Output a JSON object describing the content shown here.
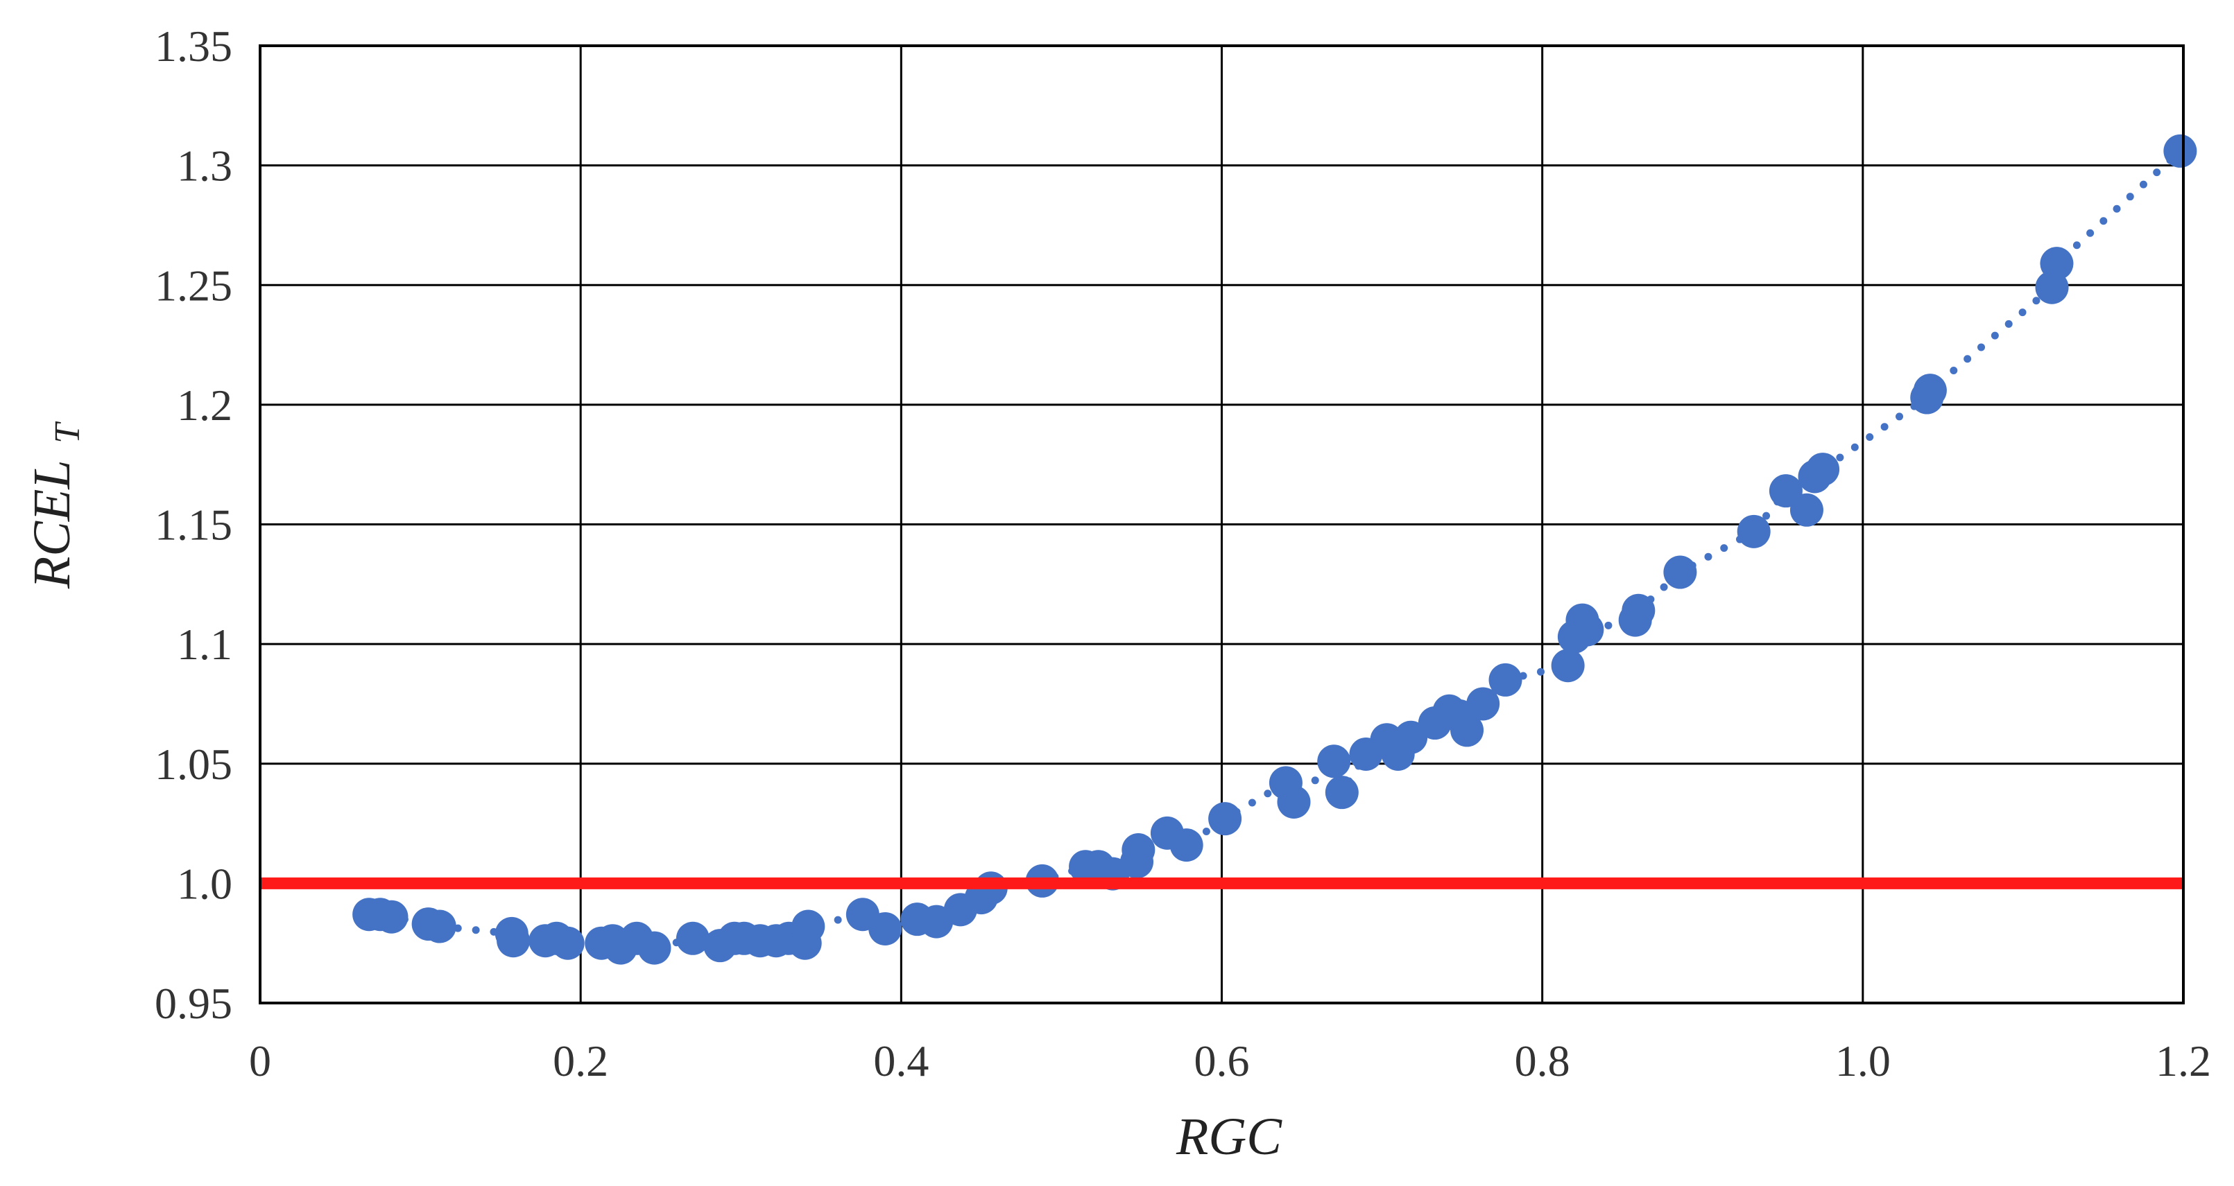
{
  "chart_data": {
    "type": "scatter",
    "xlabel": "RGC",
    "ylabel_main": "RCEL",
    "ylabel_sub": "T",
    "xlim": [
      0,
      1.2
    ],
    "ylim": [
      0.95,
      1.35
    ],
    "x_ticks": [
      0,
      0.2,
      0.4,
      0.6,
      0.8,
      1.0,
      1.2
    ],
    "x_tick_labels": [
      "0",
      "0.2",
      "0.4",
      "0.6",
      "0.8",
      "1.0",
      "1.2"
    ],
    "y_ticks": [
      0.95,
      1.0,
      1.05,
      1.1,
      1.15,
      1.2,
      1.25,
      1.3,
      1.35
    ],
    "y_tick_labels": [
      "0.95",
      "1.0",
      "1.05",
      "1.1",
      "1.15",
      "1.2",
      "1.25",
      "1.3",
      "1.35"
    ],
    "grid": true,
    "reference_line": {
      "y": 1.0,
      "color": "#ff1a1a"
    },
    "marker_color": "#4472c4",
    "trend_line": "dotted",
    "points": [
      {
        "x": 0.068,
        "y": 0.987
      },
      {
        "x": 0.075,
        "y": 0.987
      },
      {
        "x": 0.082,
        "y": 0.986
      },
      {
        "x": 0.105,
        "y": 0.983
      },
      {
        "x": 0.112,
        "y": 0.982
      },
      {
        "x": 0.157,
        "y": 0.979
      },
      {
        "x": 0.158,
        "y": 0.976
      },
      {
        "x": 0.178,
        "y": 0.976
      },
      {
        "x": 0.185,
        "y": 0.977
      },
      {
        "x": 0.192,
        "y": 0.975
      },
      {
        "x": 0.213,
        "y": 0.975
      },
      {
        "x": 0.22,
        "y": 0.976
      },
      {
        "x": 0.225,
        "y": 0.973
      },
      {
        "x": 0.235,
        "y": 0.977
      },
      {
        "x": 0.246,
        "y": 0.973
      },
      {
        "x": 0.27,
        "y": 0.977
      },
      {
        "x": 0.287,
        "y": 0.974
      },
      {
        "x": 0.296,
        "y": 0.977
      },
      {
        "x": 0.302,
        "y": 0.977
      },
      {
        "x": 0.312,
        "y": 0.976
      },
      {
        "x": 0.322,
        "y": 0.976
      },
      {
        "x": 0.33,
        "y": 0.977
      },
      {
        "x": 0.34,
        "y": 0.975
      },
      {
        "x": 0.342,
        "y": 0.982
      },
      {
        "x": 0.376,
        "y": 0.987
      },
      {
        "x": 0.39,
        "y": 0.981
      },
      {
        "x": 0.41,
        "y": 0.985
      },
      {
        "x": 0.422,
        "y": 0.984
      },
      {
        "x": 0.437,
        "y": 0.989
      },
      {
        "x": 0.45,
        "y": 0.994
      },
      {
        "x": 0.456,
        "y": 0.998
      },
      {
        "x": 0.488,
        "y": 1.001
      },
      {
        "x": 0.515,
        "y": 1.007
      },
      {
        "x": 0.523,
        "y": 1.007
      },
      {
        "x": 0.532,
        "y": 1.004
      },
      {
        "x": 0.547,
        "y": 1.009
      },
      {
        "x": 0.548,
        "y": 1.014
      },
      {
        "x": 0.566,
        "y": 1.021
      },
      {
        "x": 0.578,
        "y": 1.016
      },
      {
        "x": 0.602,
        "y": 1.027
      },
      {
        "x": 0.64,
        "y": 1.042
      },
      {
        "x": 0.645,
        "y": 1.034
      },
      {
        "x": 0.67,
        "y": 1.051
      },
      {
        "x": 0.675,
        "y": 1.038
      },
      {
        "x": 0.69,
        "y": 1.054
      },
      {
        "x": 0.703,
        "y": 1.06
      },
      {
        "x": 0.71,
        "y": 1.054
      },
      {
        "x": 0.718,
        "y": 1.061
      },
      {
        "x": 0.733,
        "y": 1.067
      },
      {
        "x": 0.742,
        "y": 1.072
      },
      {
        "x": 0.748,
        "y": 1.07
      },
      {
        "x": 0.753,
        "y": 1.064
      },
      {
        "x": 0.763,
        "y": 1.075
      },
      {
        "x": 0.777,
        "y": 1.085
      },
      {
        "x": 0.816,
        "y": 1.091
      },
      {
        "x": 0.82,
        "y": 1.103
      },
      {
        "x": 0.825,
        "y": 1.11
      },
      {
        "x": 0.828,
        "y": 1.106
      },
      {
        "x": 0.858,
        "y": 1.11
      },
      {
        "x": 0.86,
        "y": 1.114
      },
      {
        "x": 0.886,
        "y": 1.13
      },
      {
        "x": 0.932,
        "y": 1.147
      },
      {
        "x": 0.952,
        "y": 1.164
      },
      {
        "x": 0.965,
        "y": 1.156
      },
      {
        "x": 0.97,
        "y": 1.17
      },
      {
        "x": 0.975,
        "y": 1.173
      },
      {
        "x": 1.04,
        "y": 1.203
      },
      {
        "x": 1.042,
        "y": 1.206
      },
      {
        "x": 1.118,
        "y": 1.249
      },
      {
        "x": 1.121,
        "y": 1.259
      },
      {
        "x": 1.198,
        "y": 1.306
      }
    ]
  }
}
